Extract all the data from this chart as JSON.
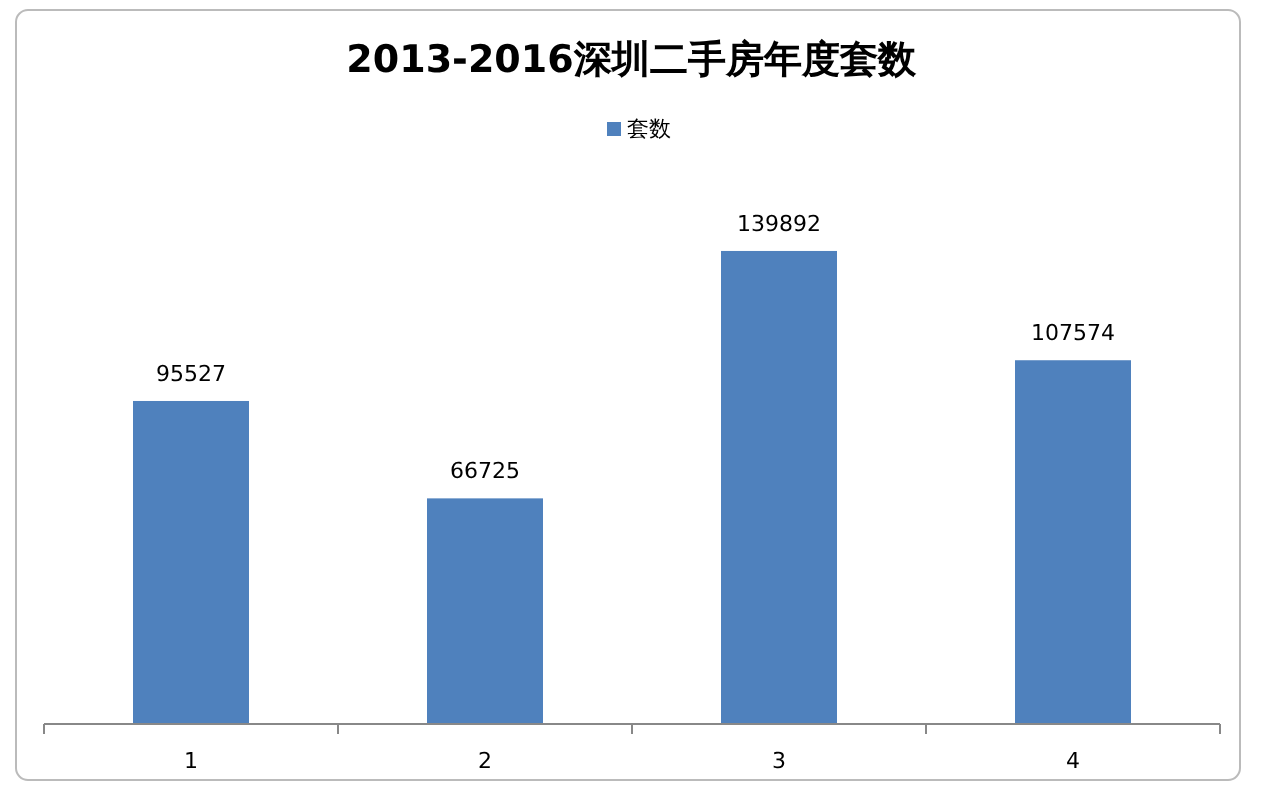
{
  "chart_data": {
    "type": "bar",
    "title": "2013-2016深圳二手房年度套数",
    "categories": [
      "1",
      "2",
      "3",
      "4"
    ],
    "series": [
      {
        "name": "套数",
        "color": "#4f81bd",
        "values": [
          95527,
          66725,
          139892,
          107574
        ]
      }
    ],
    "data_labels": true,
    "legend": "top"
  }
}
